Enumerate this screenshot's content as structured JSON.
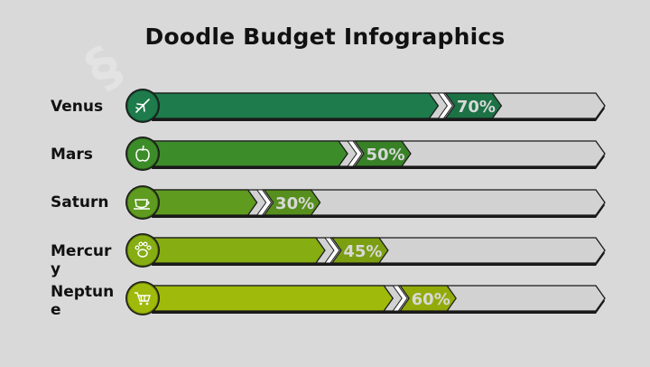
{
  "title": "Doodle Budget Infographics",
  "colors": {
    "background": "#d9d9d9",
    "track": "#d2d2d2",
    "outline": "#1a1a1a",
    "label_text": "#d8d8d8"
  },
  "chart_data": {
    "type": "bar",
    "orientation": "horizontal",
    "title": "Doodle Budget Infographics",
    "categories": [
      "Venus",
      "Mars",
      "Saturn",
      "Mercury",
      "Neptune"
    ],
    "values": [
      70,
      50,
      30,
      45,
      60
    ],
    "value_labels": [
      "70%",
      "50%",
      "30%",
      "45%",
      "60%"
    ],
    "xlim": [
      0,
      100
    ],
    "unit": "%",
    "bar_colors": [
      "#1e7b4b",
      "#3d8c2a",
      "#5e9b1f",
      "#86ad12",
      "#9fba0a"
    ],
    "icons": [
      "airplane-icon",
      "apple-icon",
      "coffee-cup-icon",
      "paw-icon",
      "shopping-cart-icon"
    ]
  }
}
